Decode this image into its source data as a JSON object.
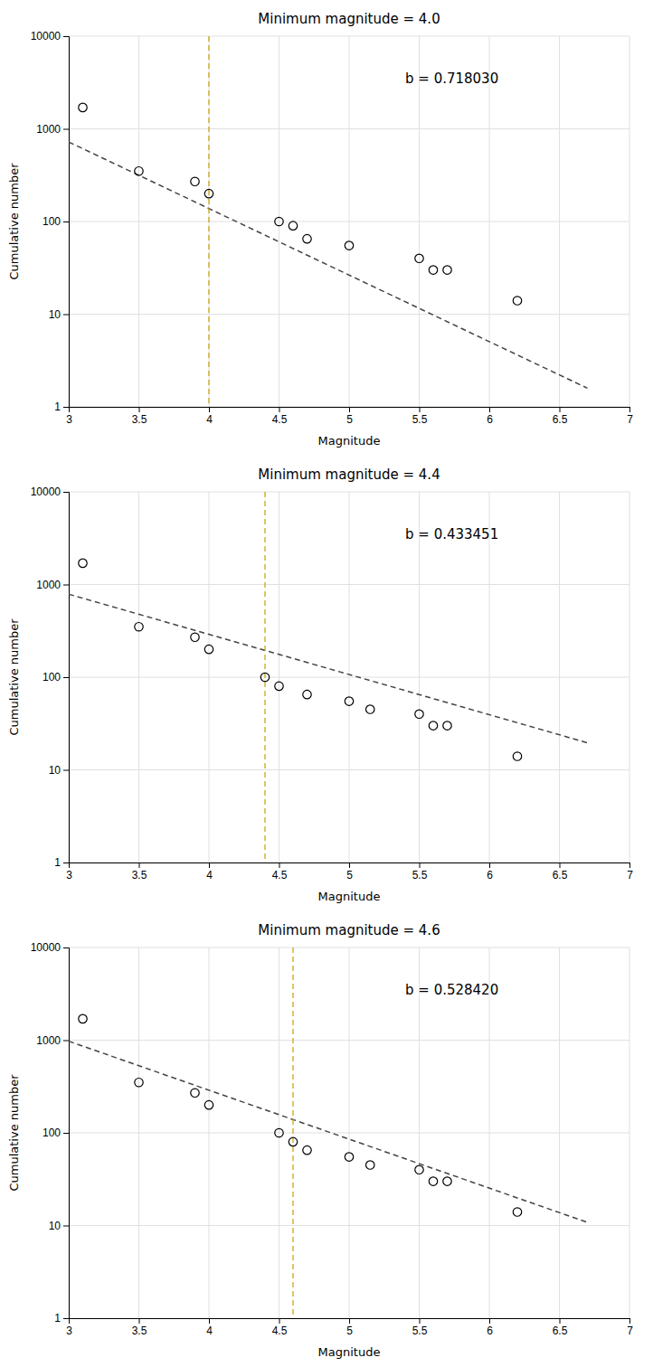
{
  "chart_data": [
    {
      "type": "scatter",
      "title": "Minimum magnitude = 4.0",
      "x_label": "Magnitude",
      "y_label": "Cumulative number",
      "series": [
        {
          "type": "scatter",
          "marker": "circle",
          "color": "#000000",
          "x": [
            3.1,
            3.5,
            3.9,
            4.0,
            4.5,
            4.6,
            4.7,
            5.0,
            5.5,
            5.6,
            5.7,
            6.2
          ],
          "values": [
            1700,
            350,
            270,
            200,
            100,
            90,
            65,
            55,
            40,
            30,
            30,
            14
          ]
        },
        {
          "type": "line",
          "line_style": "dashed",
          "color": "#444444",
          "x": [
            3.0,
            6.7
          ],
          "values": [
            720.96,
            1.589
          ]
        },
        {
          "type": "vline",
          "line_style": "dashed",
          "color": "#C8A000",
          "x": [
            4.0
          ]
        }
      ],
      "annotations": [
        "b = 0.718030"
      ],
      "xlim": [
        3.0,
        7.0
      ],
      "xticks": [
        3,
        3.5,
        4,
        4.5,
        5,
        5.5,
        6,
        6.5,
        7
      ],
      "ylim": [
        1,
        10000
      ],
      "yticks": [
        1,
        10,
        100,
        1000,
        10000
      ],
      "log": "y",
      "grid": true
    },
    {
      "type": "scatter",
      "title": "Minimum magnitude = 4.4",
      "x_label": "Magnitude",
      "y_label": "Cumulative number",
      "series": [
        {
          "type": "scatter",
          "marker": "circle",
          "color": "#000000",
          "x": [
            3.1,
            3.5,
            3.9,
            4.0,
            4.4,
            4.5,
            4.7,
            5.0,
            5.15,
            5.5,
            5.6,
            5.7,
            6.2
          ],
          "values": [
            1700,
            350,
            270,
            200,
            100,
            80,
            65,
            55,
            45,
            40,
            30,
            30,
            14
          ]
        },
        {
          "type": "line",
          "line_style": "dashed",
          "color": "#444444",
          "x": [
            3.0,
            6.7
          ],
          "values": [
            786.41,
            19.583
          ]
        },
        {
          "type": "vline",
          "line_style": "dashed",
          "color": "#C8A000",
          "x": [
            4.4
          ]
        }
      ],
      "annotations": [
        "b = 0.433451"
      ],
      "xlim": [
        3.0,
        7.0
      ],
      "xticks": [
        3,
        3.5,
        4,
        4.5,
        5,
        5.5,
        6,
        6.5,
        7
      ],
      "ylim": [
        1,
        10000
      ],
      "yticks": [
        1,
        10,
        100,
        1000,
        10000
      ],
      "log": "y",
      "grid": true
    },
    {
      "type": "scatter",
      "title": "Minimum magnitude = 4.6",
      "x_label": "Magnitude",
      "y_label": "Cumulative number",
      "series": [
        {
          "type": "scatter",
          "marker": "circle",
          "color": "#000000",
          "x": [
            3.1,
            3.5,
            3.9,
            4.0,
            4.5,
            4.6,
            4.7,
            5.0,
            5.15,
            5.5,
            5.6,
            5.7,
            6.2
          ],
          "values": [
            1700,
            350,
            270,
            200,
            100,
            80,
            65,
            55,
            45,
            40,
            30,
            30,
            14
          ]
        },
        {
          "type": "line",
          "line_style": "dashed",
          "color": "#444444",
          "x": [
            3.0,
            6.7
          ],
          "values": [
            974.41,
            10.804
          ]
        },
        {
          "type": "vline",
          "line_style": "dashed",
          "color": "#C8A000",
          "x": [
            4.6
          ]
        }
      ],
      "annotations": [
        "b = 0.528420"
      ],
      "xlim": [
        3.0,
        7.0
      ],
      "xticks": [
        3,
        3.5,
        4,
        4.5,
        5,
        5.5,
        6,
        6.5,
        7
      ],
      "ylim": [
        1,
        10000
      ],
      "yticks": [
        1,
        10,
        100,
        1000,
        10000
      ],
      "log": "y",
      "grid": true
    }
  ]
}
